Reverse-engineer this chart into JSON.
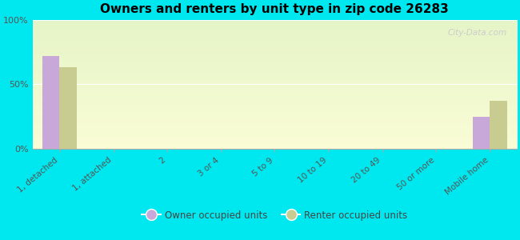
{
  "title": "Owners and renters by unit type in zip code 26283",
  "categories": [
    "1, detached",
    "1, attached",
    "2",
    "3 or 4",
    "5 to 9",
    "10 to 19",
    "20 to 49",
    "50 or more",
    "Mobile home"
  ],
  "owner_values": [
    72,
    0,
    0,
    0,
    0,
    0,
    0,
    0,
    25
  ],
  "renter_values": [
    63,
    0,
    0,
    0,
    0,
    0,
    0,
    0,
    37
  ],
  "owner_color": "#c8a8d8",
  "renter_color": "#c8cc90",
  "outer_bg": "#00e8ef",
  "ylim": [
    0,
    100
  ],
  "yticks": [
    0,
    50,
    100
  ],
  "ytick_labels": [
    "0%",
    "50%",
    "100%"
  ],
  "bar_width": 0.32,
  "legend_owner": "Owner occupied units",
  "legend_renter": "Renter occupied units",
  "watermark": "City-Data.com"
}
